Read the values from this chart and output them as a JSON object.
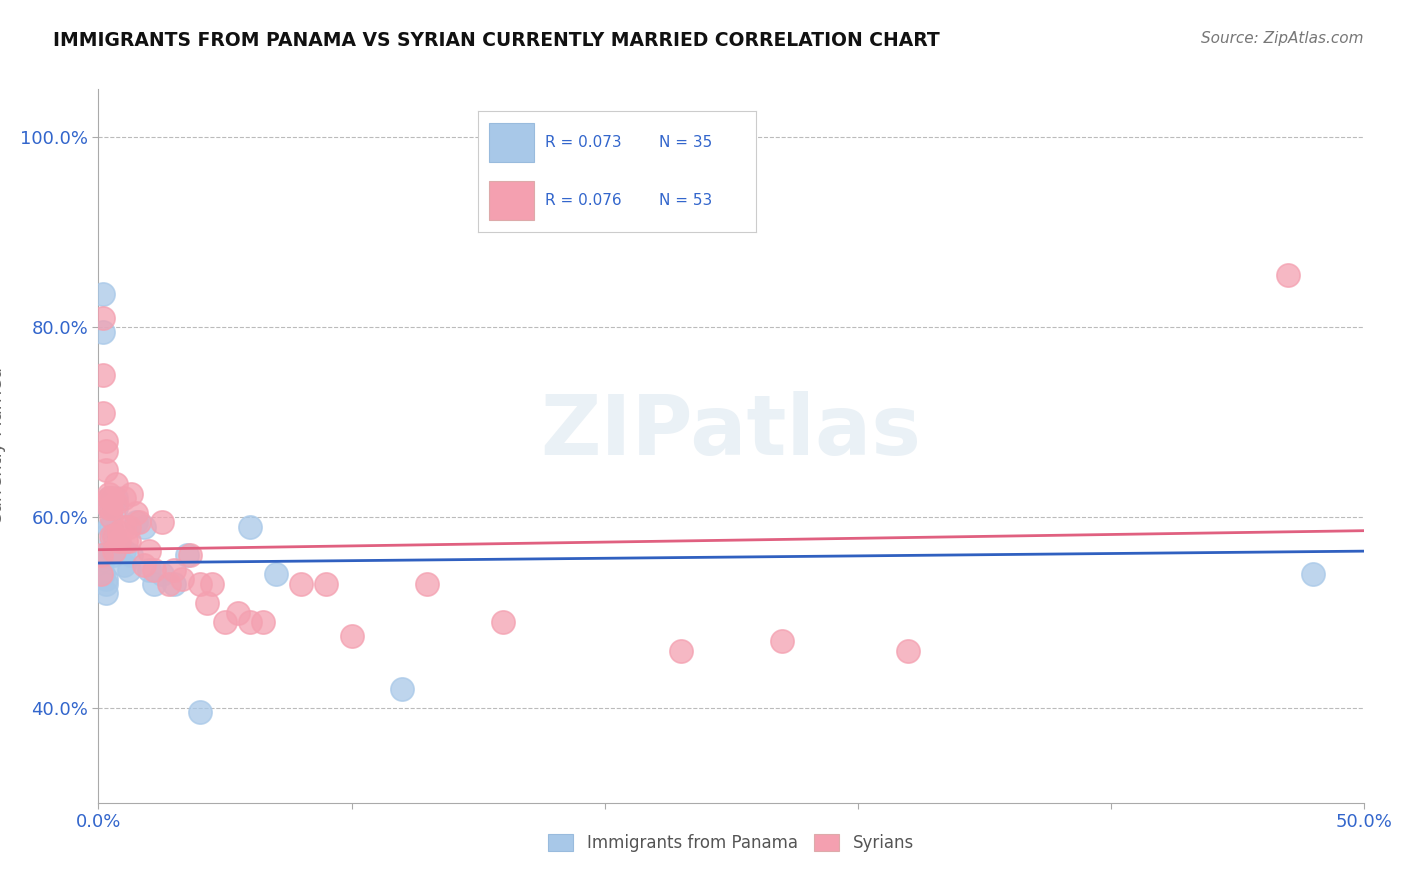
{
  "title": "IMMIGRANTS FROM PANAMA VS SYRIAN CURRENTLY MARRIED CORRELATION CHART",
  "source": "Source: ZipAtlas.com",
  "ylabel": "Currently Married",
  "xlim": [
    0.0,
    0.5
  ],
  "ylim": [
    0.3,
    1.05
  ],
  "xtick_positions": [
    0.0,
    0.1,
    0.2,
    0.3,
    0.4,
    0.5
  ],
  "xticklabels": [
    "0.0%",
    "",
    "",
    "",
    "",
    "50.0%"
  ],
  "ytick_positions": [
    0.4,
    0.6,
    0.8,
    1.0
  ],
  "yticklabels": [
    "40.0%",
    "60.0%",
    "80.0%",
    "100.0%"
  ],
  "panama_R": 0.073,
  "panama_N": 35,
  "syrian_R": 0.076,
  "syrian_N": 53,
  "panama_color": "#a8c8e8",
  "syrian_color": "#f4a0b0",
  "panama_line_color": "#3060c0",
  "syrian_line_color": "#e06080",
  "watermark": "ZIPatlas",
  "panama_x": [
    0.002,
    0.002,
    0.002,
    0.002,
    0.002,
    0.003,
    0.003,
    0.003,
    0.004,
    0.004,
    0.004,
    0.005,
    0.005,
    0.005,
    0.006,
    0.006,
    0.007,
    0.007,
    0.008,
    0.01,
    0.01,
    0.012,
    0.013,
    0.015,
    0.018,
    0.02,
    0.022,
    0.025,
    0.03,
    0.035,
    0.04,
    0.06,
    0.07,
    0.12,
    0.48
  ],
  "panama_y": [
    0.835,
    0.795,
    0.56,
    0.555,
    0.54,
    0.535,
    0.53,
    0.52,
    0.62,
    0.61,
    0.59,
    0.59,
    0.575,
    0.565,
    0.58,
    0.56,
    0.62,
    0.61,
    0.57,
    0.565,
    0.55,
    0.545,
    0.56,
    0.595,
    0.59,
    0.545,
    0.53,
    0.54,
    0.53,
    0.56,
    0.395,
    0.59,
    0.54,
    0.42,
    0.54
  ],
  "syrian_x": [
    0.001,
    0.001,
    0.002,
    0.002,
    0.002,
    0.003,
    0.003,
    0.003,
    0.004,
    0.004,
    0.004,
    0.005,
    0.005,
    0.005,
    0.005,
    0.006,
    0.006,
    0.007,
    0.007,
    0.008,
    0.008,
    0.01,
    0.01,
    0.011,
    0.012,
    0.012,
    0.013,
    0.015,
    0.016,
    0.018,
    0.02,
    0.022,
    0.025,
    0.028,
    0.03,
    0.033,
    0.036,
    0.04,
    0.043,
    0.045,
    0.05,
    0.055,
    0.06,
    0.065,
    0.08,
    0.09,
    0.1,
    0.13,
    0.16,
    0.23,
    0.27,
    0.32,
    0.47
  ],
  "syrian_y": [
    0.56,
    0.54,
    0.81,
    0.75,
    0.71,
    0.68,
    0.67,
    0.65,
    0.625,
    0.62,
    0.61,
    0.62,
    0.61,
    0.6,
    0.58,
    0.58,
    0.565,
    0.635,
    0.615,
    0.585,
    0.575,
    0.62,
    0.59,
    0.575,
    0.59,
    0.575,
    0.625,
    0.605,
    0.595,
    0.55,
    0.565,
    0.545,
    0.595,
    0.53,
    0.545,
    0.535,
    0.56,
    0.53,
    0.51,
    0.53,
    0.49,
    0.5,
    0.49,
    0.49,
    0.53,
    0.53,
    0.475,
    0.53,
    0.49,
    0.46,
    0.47,
    0.46,
    0.855
  ]
}
